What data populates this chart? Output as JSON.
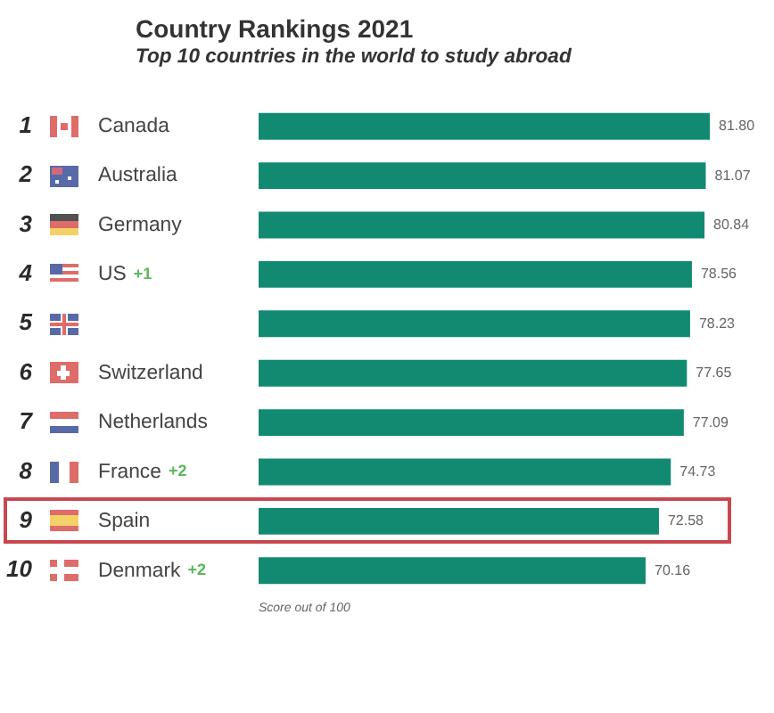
{
  "chart_data": {
    "type": "bar",
    "orientation": "horizontal",
    "title": "Country Rankings 2021",
    "subtitle": "Top 10 countries in the world to study abroad",
    "categories": [
      "Canada",
      "Australia",
      "Germany",
      "US",
      null,
      "Switzerland",
      "Netherlands",
      "France",
      "Spain",
      "Denmark"
    ],
    "values": [
      81.8,
      81.07,
      80.84,
      78.56,
      78.23,
      77.65,
      77.09,
      74.73,
      72.58,
      70.16
    ],
    "value_labels": [
      "81.80",
      "81.07",
      "80.84",
      "78.56",
      "78.23",
      "77.65",
      "77.09",
      "74.73",
      "72.58",
      "70.16"
    ],
    "color": "#128a72",
    "legend": false,
    "tick_labels": "y",
    "annotations": [
      "1",
      "2",
      "3",
      "4",
      "5",
      "6",
      "7",
      "8",
      "9",
      "10",
      "+1",
      "+2",
      "+2",
      "Score out of 100"
    ]
  }
}
